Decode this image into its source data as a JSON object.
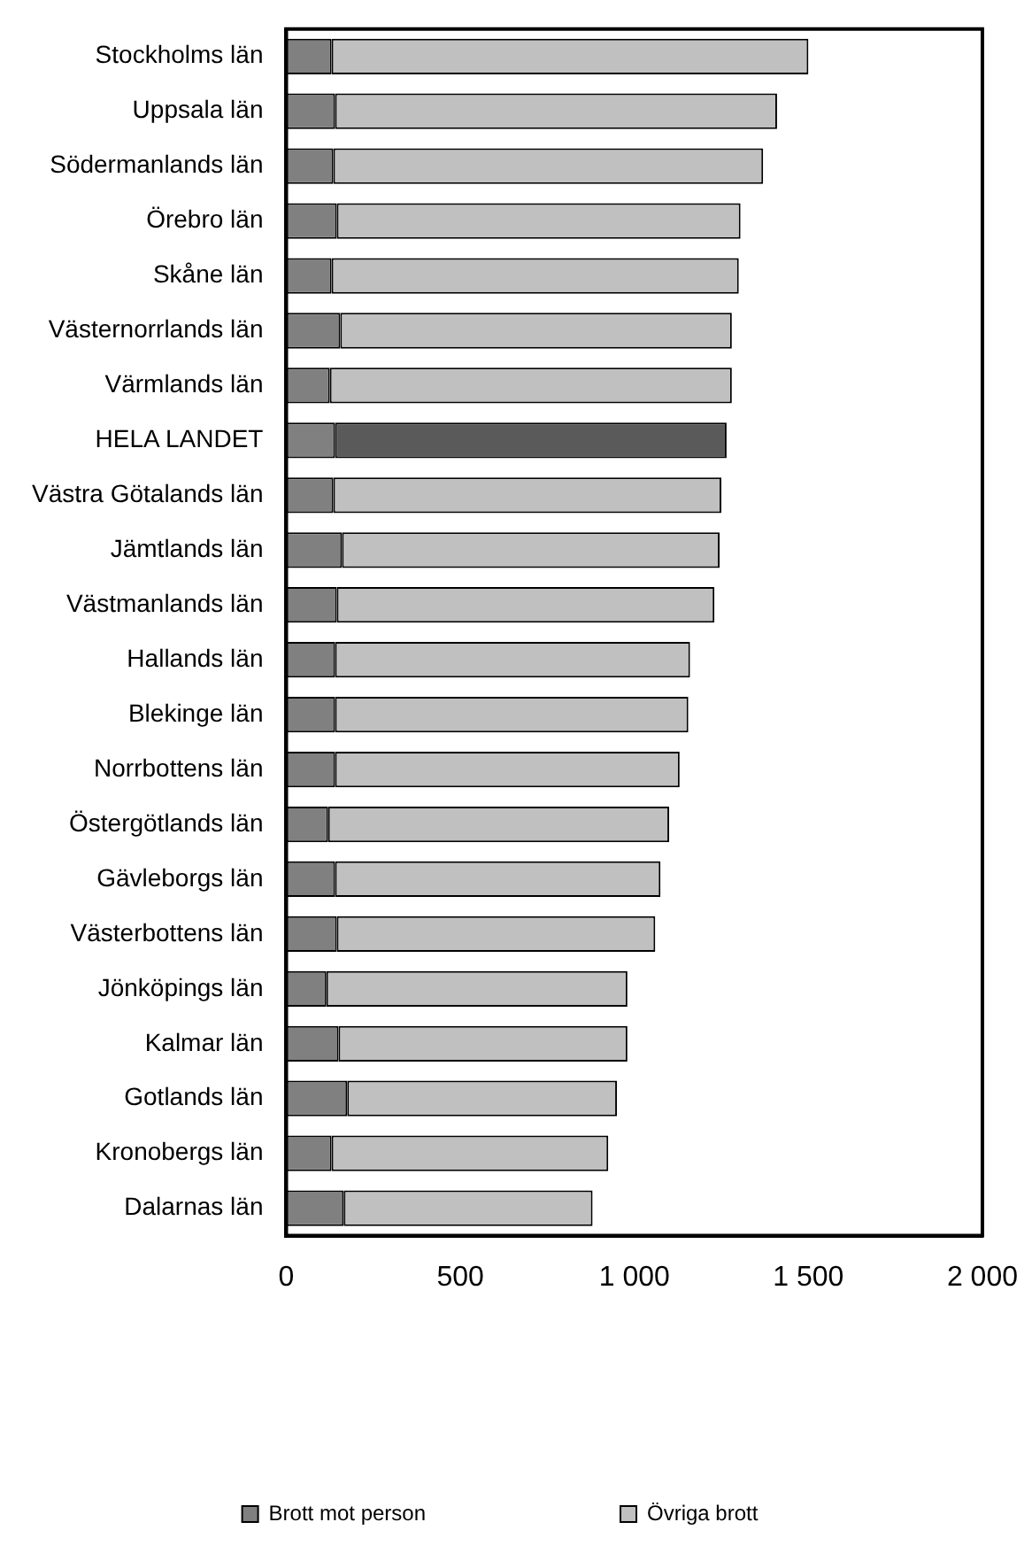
{
  "chart_data": {
    "type": "bar",
    "orientation": "horizontal",
    "stacked": true,
    "categories": [
      "Stockholms län",
      "Uppsala län",
      "Södermanlands län",
      "Örebro län",
      "Skåne län",
      "Västernorrlands län",
      "Värmlands län",
      "HELA LANDET",
      "Västra Götalands län",
      "Jämtlands län",
      "Västmanlands län",
      "Hallands län",
      "Blekinge län",
      "Norrbottens län",
      "Östergötlands län",
      "Gävleborgs län",
      "Västerbottens län",
      "Jönköpings län",
      "Kalmar län",
      "Gotlands län",
      "Kronobergs län",
      "Dalarnas län"
    ],
    "series": [
      {
        "name": "Brott mot person",
        "color": "#808080",
        "values": [
          130,
          140,
          135,
          145,
          130,
          155,
          125,
          140,
          135,
          160,
          145,
          140,
          140,
          140,
          120,
          140,
          145,
          115,
          150,
          175,
          130,
          165
        ]
      },
      {
        "name": "Övriga brott",
        "color": "#c0c0c0",
        "colors": [
          "#c0c0c0",
          "#c0c0c0",
          "#c0c0c0",
          "#c0c0c0",
          "#c0c0c0",
          "#c0c0c0",
          "#c0c0c0",
          "#5a5a5a",
          "#c0c0c0",
          "#c0c0c0",
          "#c0c0c0",
          "#c0c0c0",
          "#c0c0c0",
          "#c0c0c0",
          "#c0c0c0",
          "#c0c0c0",
          "#c0c0c0",
          "#c0c0c0",
          "#c0c0c0",
          "#c0c0c0",
          "#c0c0c0",
          "#c0c0c0"
        ],
        "values": [
          1370,
          1270,
          1235,
          1160,
          1170,
          1125,
          1155,
          1125,
          1115,
          1085,
          1085,
          1020,
          1015,
          990,
          980,
          935,
          915,
          865,
          830,
          775,
          795,
          715
        ]
      }
    ],
    "xlim": [
      0,
      2000
    ],
    "xticks": [
      0,
      {
        "value": 500,
        "label": "500"
      },
      {
        "value": 1000,
        "label": "1 000"
      },
      {
        "value": 1500,
        "label": "1 500"
      },
      {
        "value": 2000,
        "label": "2 000"
      }
    ],
    "grid": false,
    "legend": "bottom"
  }
}
